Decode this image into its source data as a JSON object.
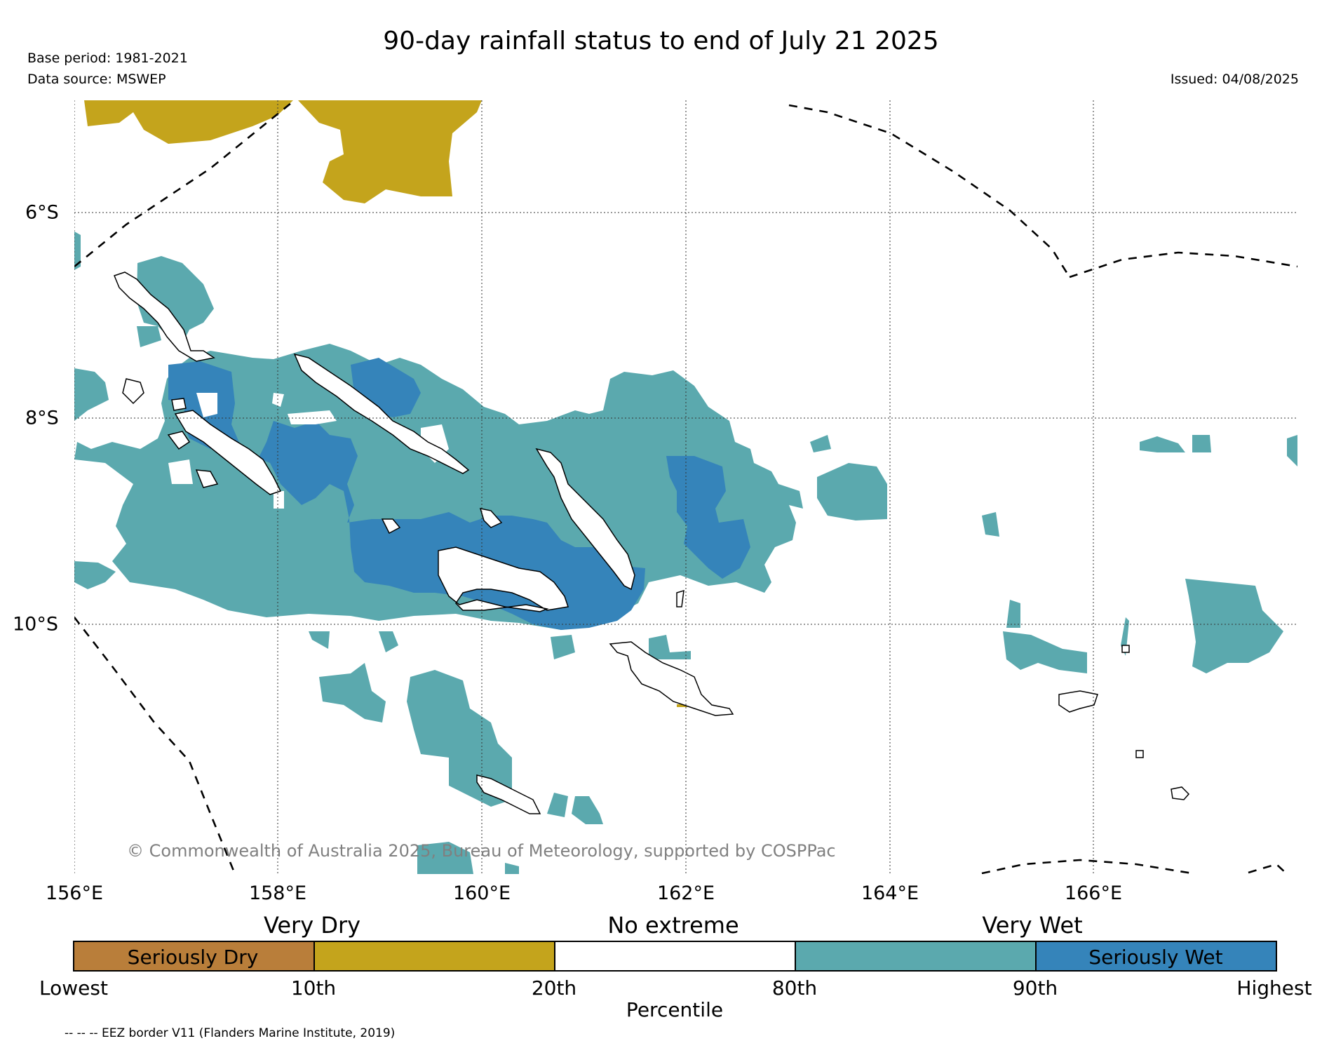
{
  "header": {
    "title": "90-day rainfall status to end of July 21 2025",
    "base_period": "Base period: 1981-2021",
    "data_source": "Data source: MSWEP",
    "issued": "Issued: 04/08/2025"
  },
  "map": {
    "lon_labels": [
      "156°E",
      "158°E",
      "160°E",
      "162°E",
      "164°E",
      "166°E"
    ],
    "lat_labels": [
      "6°S",
      "8°S",
      "10°S"
    ],
    "copyright": "© Commonwealth of Australia 2025, Bureau of Meteorology, supported by COSPPac",
    "colors": {
      "very_wet": "#5ba9ae",
      "seriously_wet": "#3584ba",
      "very_dry": "#c4a41c",
      "seriously_dry": "#b97e3a",
      "no_extreme": "#ffffff"
    }
  },
  "legend": {
    "categories": [
      "Very Dry",
      "No extreme",
      "Very Wet"
    ],
    "seriously_dry_label": "Seriously Dry",
    "seriously_wet_label": "Seriously Wet",
    "ticks": [
      "Lowest",
      "10th",
      "20th",
      "80th",
      "90th",
      "Highest"
    ],
    "xlabel": "Percentile"
  },
  "footer": {
    "eez_note": "-- -- -- EEZ border V11 (Flanders Marine Institute, 2019)"
  }
}
